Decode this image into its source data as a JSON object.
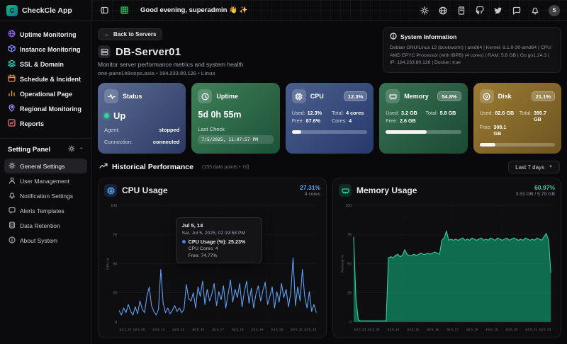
{
  "app": {
    "name": "CheckCle App",
    "logo_letter": "C"
  },
  "header": {
    "greeting": "Good evening, superadmin 👋 ✨",
    "avatar_initial": "S",
    "icons": [
      "panel-toggle",
      "table",
      "theme-sun",
      "language-globe",
      "docs",
      "github",
      "twitter",
      "chat",
      "notifications-bell",
      "avatar"
    ]
  },
  "sidebar": {
    "items": [
      {
        "label": "Uptime Monitoring",
        "color": "#8b5cf6"
      },
      {
        "label": "Instance Monitoring",
        "color": "#818cf8"
      },
      {
        "label": "SSL & Domain",
        "color": "#2dd4bf"
      },
      {
        "label": "Schedule & Incident",
        "color": "#fb923c"
      },
      {
        "label": "Operational Page",
        "color": "#eab308"
      },
      {
        "label": "Regional Monitoring",
        "color": "#a78bfa"
      },
      {
        "label": "Reports",
        "color": "#f87171"
      }
    ],
    "settings_section": {
      "label": "Setting Panel",
      "items": [
        {
          "label": "General Settings",
          "active": true
        },
        {
          "label": "User Management",
          "active": false
        },
        {
          "label": "Notification Settings",
          "active": false
        },
        {
          "label": "Alerts Templates",
          "active": false
        },
        {
          "label": "Data Retention",
          "active": false
        },
        {
          "label": "About System",
          "active": false
        }
      ]
    }
  },
  "page": {
    "back_button": "Back to Servers",
    "server_name": "DB-Server01",
    "subtitle": "Monitor server performance metrics and system health",
    "meta": "one-panel.k8sops.asia • 194.233.80.126 • Linux"
  },
  "system_info": {
    "title": "System Information",
    "details": "Debian GNU/Linux 12 (bookworm) | amd64 | Kernel: 6.1.0-30-amd64 | CPU: AMD EPYC Processor (with IBPB) (4 cores) | RAM: 5.8 GB | Go go1.24.3 | IP: 194.233.80.126 | Docker: true"
  },
  "cards": {
    "status": {
      "title": "Status",
      "value": "Up",
      "agent_label": "Agent:",
      "agent": "stopped",
      "connection_label": "Connection:",
      "connection": "connected"
    },
    "uptime": {
      "title": "Uptime",
      "value": "5d 0h 55m",
      "last_check_label": "Last Check",
      "last_check": "7/5/2025, 11:07:57 PM"
    },
    "cpu": {
      "title": "CPU",
      "badge": "12.3%",
      "progress_pct": 12.3,
      "rows": [
        {
          "k": "Used:",
          "v": "12.3%"
        },
        {
          "k": "Total:",
          "v": "4 cores"
        },
        {
          "k": "Free:",
          "v": "87.6%"
        },
        {
          "k": "Cores:",
          "v": "4"
        }
      ]
    },
    "memory": {
      "title": "Memory",
      "badge": "54.8%",
      "progress_pct": 54.8,
      "rows": [
        {
          "k": "Used:",
          "v": "3.2 GB"
        },
        {
          "k": "Total:",
          "v": "5.8 GB"
        },
        {
          "k": "Free:",
          "v": "2.6 GB"
        }
      ]
    },
    "disk": {
      "title": "Disk",
      "badge": "21.1%",
      "progress_pct": 21.1,
      "rows": [
        {
          "k": "Used:",
          "v": "82.6 GB"
        },
        {
          "k": "Total:",
          "v": "390.7 GB"
        },
        {
          "k": "Free:",
          "v": "308.1 GB"
        }
      ]
    }
  },
  "historical": {
    "title": "Historical Performance",
    "meta": "(155 data points • 7d)",
    "range_selector": "Last 7 days"
  },
  "chart_data": [
    {
      "type": "line",
      "title": "CPU Usage",
      "current": "27.31%",
      "current_sub": "4 cores",
      "ylabel": "CPU %",
      "ylim": [
        0,
        100
      ],
      "yticks": [
        0,
        25,
        50,
        75,
        100
      ],
      "grid": true,
      "color": "#60a5fa",
      "x_labels": [
        "Jul 3, 23",
        "Jul 4, 09",
        "Jul 5, 14",
        "Jul 5, 15",
        "Jul 5, 16",
        "Jul 5, 17",
        "Jul 5, 18",
        "Jul 5, 19",
        "Jul 5, 20",
        "Jul 5, 21",
        "Jul 5, 23"
      ],
      "values": [
        10,
        6,
        12,
        8,
        15,
        9,
        6,
        13,
        7,
        18,
        11,
        8,
        22,
        30,
        14,
        9,
        6,
        11,
        45,
        16,
        8,
        12,
        7,
        10,
        14,
        9,
        12,
        8,
        11,
        32,
        20,
        18,
        25,
        12,
        30,
        22,
        35,
        15,
        28,
        18,
        24,
        33,
        14,
        26,
        19,
        31,
        12,
        24,
        36,
        17,
        28,
        21,
        33,
        13,
        26,
        35,
        16,
        29,
        12,
        24,
        31,
        18,
        27,
        34,
        15,
        22,
        30,
        12,
        26,
        17,
        33,
        21,
        28,
        13,
        25,
        55,
        14,
        30,
        18,
        45,
        22,
        12,
        26,
        9,
        15,
        8
      ],
      "tooltip": {
        "title": "Jul 5, 14",
        "datetime": "Sat, Jul 5, 2025, 02:19:58 PM",
        "value_line": "CPU Usage (%): 25.23%",
        "cores_line": "CPU Cores: 4",
        "free_line": "Free: 74.77%"
      }
    },
    {
      "type": "area",
      "title": "Memory Usage",
      "current": "60.97%",
      "current_sub": "3.53 GB / 5.79 GB",
      "ylabel": "Memory %",
      "ylim": [
        0,
        100
      ],
      "yticks": [
        0,
        25,
        50,
        75,
        100
      ],
      "grid": true,
      "color": "#34d399",
      "fill": "rgba(16,185,129,0.55)",
      "x_labels": [
        "Jul 3, 23",
        "Jul 4, 09",
        "Jul 5, 14",
        "Jul 5, 15",
        "Jul 5, 16",
        "Jul 5, 17",
        "Jul 5, 18",
        "Jul 5, 19",
        "Jul 5, 20",
        "Jul 5, 21",
        "Jul 5, 23"
      ],
      "values": [
        73,
        20,
        2,
        1,
        1,
        1,
        1,
        1,
        1,
        1,
        1,
        1,
        1,
        1,
        1,
        55,
        56,
        55,
        57,
        58,
        56,
        57,
        62,
        58,
        57,
        57,
        58,
        57,
        58,
        59,
        58,
        58,
        59,
        58,
        59,
        60,
        59,
        58,
        70,
        72,
        78,
        70,
        71,
        70,
        71,
        70,
        71,
        72,
        70,
        71,
        70,
        72,
        71,
        70,
        71,
        72,
        70,
        71,
        70,
        72,
        71,
        70,
        72,
        71,
        70,
        71,
        72,
        70,
        71,
        72,
        71,
        70,
        71,
        70,
        72,
        71,
        70,
        71,
        70,
        72,
        71,
        70,
        73,
        76,
        70,
        42
      ]
    }
  ]
}
